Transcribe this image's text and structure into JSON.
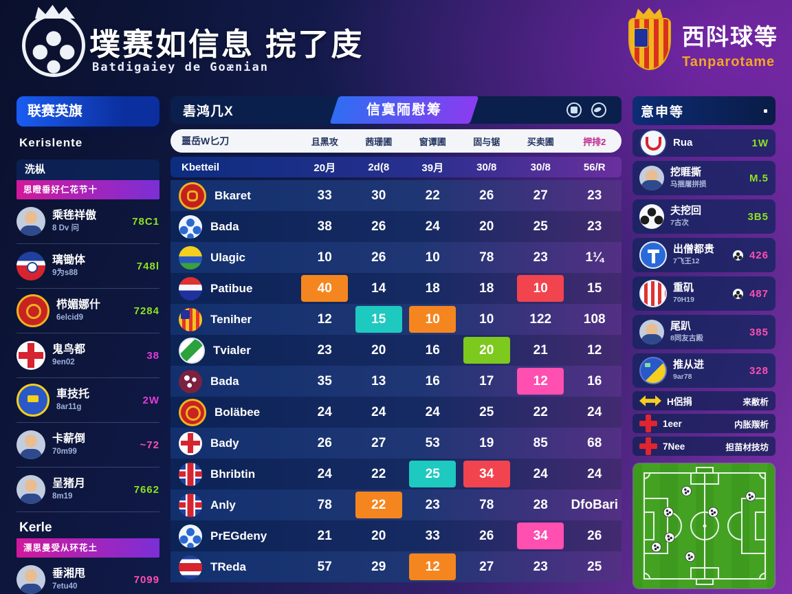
{
  "colors": {
    "green": "#8de31e",
    "magenta": "#e23bd8",
    "pink": "#ff4fb0",
    "orange": "#f5861f",
    "teal": "#1ec9c0",
    "lime": "#7dc91e",
    "red": "#f2444e",
    "blue": "#2f6df2",
    "purple": "#8a3cf0",
    "gold": "#f5a623"
  },
  "header": {
    "title": "墣赛如信息 捖了庋",
    "subtitle": "Batdigaiey de Goænian",
    "right_title": "西阧球等",
    "right_subtitle": "Tanparotame"
  },
  "left_sidebar": {
    "header": "联赛英旗",
    "subtitle": "Kerislente",
    "sections": [
      {
        "title": "洗枞",
        "banner": "思瞪垂好仁花节十",
        "players": [
          {
            "icon": "i-avatar",
            "name": "乘毪祥傲",
            "sub": "8 Dv 问",
            "value": "78C1",
            "color": "green"
          },
          {
            "icon": "i-ball-rwb",
            "name": "璃锄体",
            "sub": "9为s88",
            "value": "748l",
            "color": "green"
          },
          {
            "icon": "i-shield-ry",
            "name": "栉媚娜什",
            "sub": "6elcid9",
            "value": "7284",
            "color": "green"
          },
          {
            "icon": "i-ball-redcross",
            "name": "鬼鸟都",
            "sub": "9en02",
            "value": "38",
            "color": "magenta"
          },
          {
            "icon": "i-shield-by",
            "name": "車技托",
            "sub": "8ar11g",
            "value": "2W",
            "color": "magenta"
          },
          {
            "icon": "i-avatar",
            "name": "卡薪倒",
            "sub": "70m99",
            "value": "~72",
            "color": "pink"
          },
          {
            "icon": "i-avatar",
            "name": "呈猪月",
            "sub": "8m19",
            "value": "7662",
            "color": "green"
          }
        ]
      },
      {
        "title": "Kerle",
        "banner": "漂思曼受从环花土",
        "players": [
          {
            "icon": "i-avatar",
            "name": "垂湘甩",
            "sub": "7etu40",
            "value": "7099",
            "color": "pink"
          }
        ]
      }
    ]
  },
  "tabs": {
    "tab1": "砉鸿几X",
    "tab2": "信寞陑慰筹"
  },
  "table": {
    "header": {
      "first": "噩岳W匕刀",
      "cols": [
        "且黑攻",
        "茜珊圃",
        "窗谭圃",
        "固与锯",
        "买卖圃",
        "押排2"
      ]
    },
    "subheader": {
      "first": "Kbetteil",
      "values": [
        "20月",
        "2d(8",
        "39月",
        "30/8",
        "30/8",
        "56/R"
      ]
    },
    "rows": [
      {
        "name": "Bkaret",
        "icon": "i-shield-red",
        "values": [
          "33",
          "30",
          "22",
          "26",
          "27",
          "23"
        ],
        "hl": [
          null,
          null,
          null,
          null,
          null,
          null
        ]
      },
      {
        "name": "Bada",
        "icon": "i-ball-blue",
        "values": [
          "38",
          "26",
          "24",
          "20",
          "25",
          "23"
        ],
        "hl": [
          null,
          null,
          null,
          null,
          null,
          null
        ]
      },
      {
        "name": "Ulagic",
        "icon": "i-round-yb",
        "values": [
          "10",
          "26",
          "10",
          "78",
          "23",
          "1¼"
        ],
        "hl": [
          null,
          null,
          null,
          null,
          null,
          null
        ]
      },
      {
        "name": "Patibue",
        "icon": "i-crest-tri",
        "values": [
          "40",
          "14",
          "18",
          "18",
          "10",
          "15"
        ],
        "hl": [
          "orange",
          null,
          null,
          null,
          "red",
          null
        ]
      },
      {
        "name": "Teniher",
        "icon": "i-crest-stripes",
        "values": [
          "12",
          "15",
          "10",
          "10",
          "122",
          "108"
        ],
        "hl": [
          null,
          "teal",
          "orange",
          null,
          null,
          null
        ]
      },
      {
        "name": "Tvialer",
        "icon": "i-ball-green",
        "values": [
          "23",
          "20",
          "16",
          "20",
          "21",
          "12"
        ],
        "hl": [
          null,
          null,
          null,
          "green",
          null,
          null
        ]
      },
      {
        "name": "Bada",
        "icon": "i-ball-maroon",
        "values": [
          "35",
          "13",
          "16",
          "17",
          "12",
          "16"
        ],
        "hl": [
          null,
          null,
          null,
          null,
          "pink",
          null
        ]
      },
      {
        "name": "Boläbee",
        "icon": "i-shield-ry",
        "values": [
          "24",
          "24",
          "24",
          "25",
          "22",
          "24"
        ],
        "hl": [
          null,
          null,
          null,
          null,
          null,
          null
        ]
      },
      {
        "name": "Bady",
        "icon": "i-ball-redcross",
        "values": [
          "26",
          "27",
          "53",
          "19",
          "85",
          "68"
        ],
        "hl": [
          null,
          null,
          null,
          null,
          null,
          null
        ]
      },
      {
        "name": "Bhribtin",
        "icon": "i-ball-uj",
        "values": [
          "24",
          "22",
          "25",
          "34",
          "24",
          "24"
        ],
        "hl": [
          null,
          null,
          "teal",
          "red",
          null,
          null
        ]
      },
      {
        "name": "Anly",
        "icon": "i-ball-uj",
        "values": [
          "78",
          "22",
          "23",
          "78",
          "28",
          "DfoBari"
        ],
        "hl": [
          null,
          "orange",
          null,
          null,
          null,
          null
        ]
      },
      {
        "name": "PrEGdeny",
        "icon": "i-ball-blue",
        "values": [
          "21",
          "20",
          "33",
          "26",
          "34",
          "26"
        ],
        "hl": [
          null,
          null,
          null,
          null,
          "pink",
          null
        ]
      },
      {
        "name": "TReda",
        "icon": "i-ball-stripes",
        "values": [
          "57",
          "29",
          "12",
          "27",
          "23",
          "25"
        ],
        "hl": [
          null,
          null,
          "orange",
          null,
          null,
          null
        ]
      }
    ]
  },
  "right_sidebar": {
    "header": "意申等",
    "items": [
      {
        "icon": "i-crest-u",
        "name": "Rua",
        "sub": "",
        "value": "1W",
        "color": "green",
        "ball": false
      },
      {
        "icon": "i-avatar",
        "name": "挖睚撕",
        "sub": "马捆屠拼损",
        "value": "M.5",
        "color": "green",
        "ball": false
      },
      {
        "icon": "i-ball-bw",
        "name": "夫挖回",
        "sub": "7古次",
        "value": "3B5",
        "color": "green",
        "ball": false
      },
      {
        "icon": "i-shield-t",
        "name": "出僧都贵",
        "sub": "7飞王12",
        "value": "426",
        "color": "pink",
        "ball": true
      },
      {
        "icon": "i-shield-str",
        "name": "重矶",
        "sub": "70H19",
        "value": "487",
        "color": "pink",
        "ball": true
      },
      {
        "icon": "i-avatar",
        "name": "尾趴",
        "sub": "8同友古殿",
        "value": "385",
        "color": "pink",
        "ball": false
      },
      {
        "icon": "i-shield-by2",
        "name": "推从进",
        "sub": "9ar78",
        "value": "328",
        "color": "pink",
        "ball": false
      }
    ],
    "links": [
      {
        "icon": "i-chevrons",
        "icon_name": "double-arrow-icon",
        "label": "H侶捐",
        "right": "来敝析"
      },
      {
        "icon": "i-cross",
        "icon_name": "red-cross-icon",
        "label": "1eer",
        "right": "内胀羰析"
      },
      {
        "icon": "i-cross",
        "icon_name": "red-cross-icon",
        "label": "7Nee",
        "right": "担苗材技坊"
      }
    ],
    "pitch_markers": [
      [
        35,
        17
      ],
      [
        88,
        22
      ],
      [
        20,
        37
      ],
      [
        57,
        37
      ],
      [
        21,
        61
      ],
      [
        10,
        70
      ],
      [
        38,
        79
      ]
    ]
  }
}
